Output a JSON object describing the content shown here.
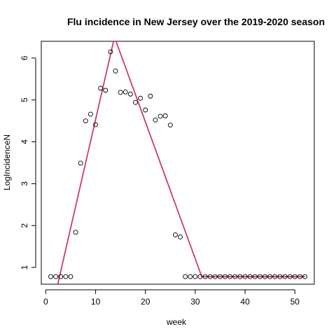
{
  "chart_data": {
    "type": "scatter",
    "title": "Flu incidence in New Jersey over the 2019-2020 season",
    "xlabel": "week",
    "ylabel": "LogIncidenceN",
    "xlim": [
      -0.9,
      53.9
    ],
    "ylim": [
      0.6,
      6.4
    ],
    "xticks": [
      0,
      10,
      20,
      30,
      40,
      50
    ],
    "yticks": [
      1,
      2,
      3,
      4,
      5,
      6
    ],
    "grid": false,
    "point_color": "#000000",
    "series": [
      {
        "x": [
          1,
          2,
          3,
          4,
          5,
          6,
          7,
          8,
          9,
          10,
          11,
          12,
          13,
          14,
          15,
          16,
          17,
          18,
          19,
          20,
          21,
          22,
          23,
          24,
          25,
          26,
          27,
          28,
          29,
          30,
          31,
          32,
          33,
          34,
          35,
          36,
          37,
          38,
          39,
          40,
          41,
          42,
          43,
          44,
          45,
          46,
          47,
          48,
          49,
          50,
          51,
          52
        ],
        "y": [
          0.78,
          0.78,
          0.78,
          0.78,
          0.78,
          1.84,
          3.49,
          4.5,
          4.66,
          4.41,
          5.28,
          5.23,
          6.15,
          5.69,
          5.18,
          5.19,
          5.14,
          4.94,
          5.04,
          4.76,
          5.09,
          4.52,
          4.61,
          4.62,
          4.4,
          1.78,
          1.73,
          0.78,
          0.78,
          0.78,
          0.78,
          0.78,
          0.78,
          0.78,
          0.78,
          0.78,
          0.78,
          0.78,
          0.78,
          0.78,
          0.78,
          0.78,
          0.78,
          0.78,
          0.78,
          0.78,
          0.78,
          0.78,
          0.78,
          0.78,
          0.78,
          0.78
        ]
      }
    ],
    "fit_line": {
      "color": "#cd3e5c",
      "points": [
        [
          2.4,
          0.6
        ],
        [
          13.8,
          6.5
        ],
        [
          31.3,
          0.78
        ],
        [
          52,
          0.78
        ]
      ]
    }
  }
}
